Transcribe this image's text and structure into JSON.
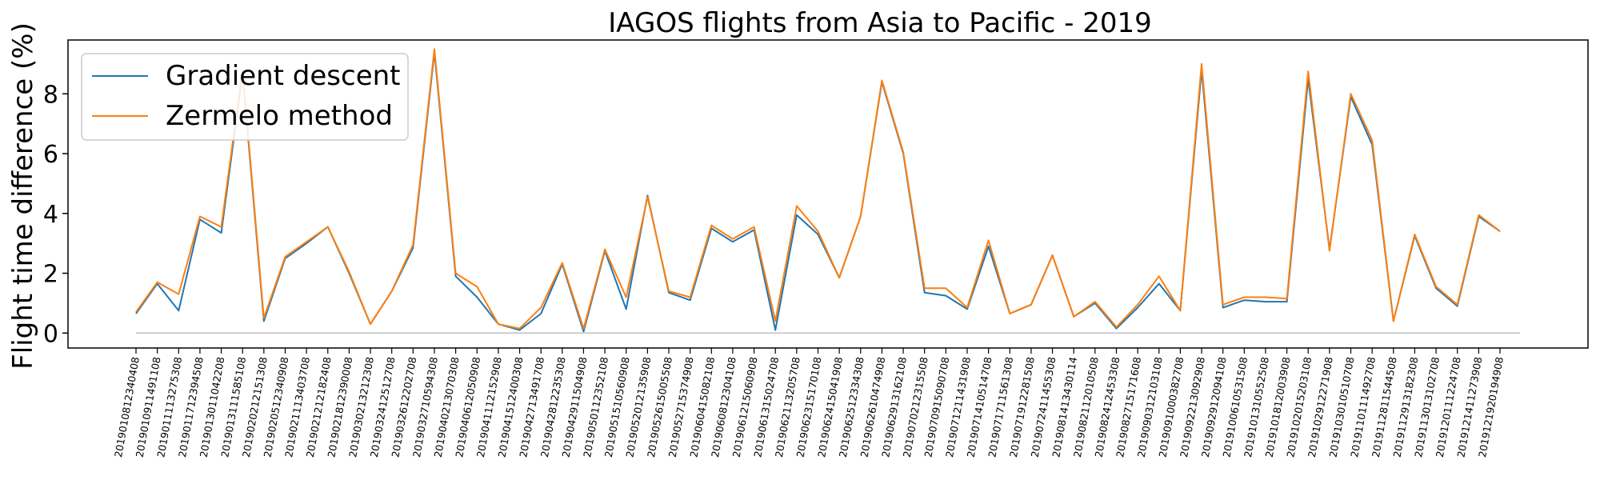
{
  "chart_data": {
    "type": "line",
    "title": "IAGOS flights from Asia to Pacific - 2019",
    "xlabel": "",
    "ylabel": "Flight time difference (%)",
    "ylim": [
      -0.5,
      9.8
    ],
    "yticks": [
      "0",
      "2",
      "4",
      "6",
      "8"
    ],
    "grid": false,
    "legend": "top-left",
    "colors": {
      "gradient": "#1f77b4",
      "zermelo": "#ff7f0e",
      "baseline": "#c0c0c0"
    },
    "categories": [
      "2019010812340408",
      "2019010911491108",
      "2019011113275308",
      "2019011712394508",
      "2019013011042208",
      "2019013111585108",
      "2019020212151308",
      "2019020512340908",
      "2019021113403708",
      "2019021212182408",
      "2019021812390008",
      "2019030213212308",
      "2019032412512708",
      "2019032612202708",
      "2019032710594308",
      "2019040213070308",
      "2019040612050908",
      "2019041112152908",
      "2019041512400308",
      "2019042713491708",
      "2019042812235308",
      "2019042911504908",
      "2019050112352108",
      "2019051510560908",
      "2019052012135908",
      "2019052615005508",
      "2019052715374908",
      "2019060415082108",
      "2019060812304108",
      "2019061215060908",
      "2019061315024708",
      "2019062113205708",
      "2019062315170108",
      "2019062415041908",
      "2019062512334308",
      "2019062610474908",
      "2019062913162108",
      "2019070212315508",
      "2019070915090708",
      "2019071211431908",
      "2019071410514708",
      "2019071711561308",
      "2019071912281508",
      "2019072411455308",
      "2019081413430114",
      "2019082112010508",
      "2019082412453308",
      "2019082715171608",
      "2019090312103108",
      "2019091000382708",
      "2019092213092908",
      "2019092912094108",
      "2019100610531508",
      "2019101310552508",
      "2019101812003908",
      "2019102015203108",
      "2019102912271908",
      "2019103010510708",
      "2019110111492708",
      "2019112811544508",
      "2019112913182308",
      "2019113013102708",
      "2019120111224708",
      "2019121411273908",
      "2019121920194908"
    ],
    "series": [
      {
        "name": "Gradient descent",
        "values": [
          0.65,
          1.65,
          0.75,
          3.8,
          3.35,
          8.7,
          0.4,
          2.5,
          3.0,
          3.55,
          2.0,
          0.3,
          1.4,
          2.85,
          9.4,
          1.9,
          1.2,
          0.3,
          0.1,
          0.65,
          2.3,
          0.05,
          2.75,
          0.8,
          4.6,
          1.35,
          1.1,
          3.5,
          3.05,
          3.45,
          0.1,
          3.95,
          3.3,
          1.85,
          3.9,
          8.4,
          6.0,
          1.35,
          1.25,
          0.8,
          2.9,
          0.65,
          0.95,
          2.6,
          0.55,
          1.0,
          0.15,
          0.85,
          1.65,
          0.75,
          8.8,
          0.85,
          1.1,
          1.05,
          1.05,
          8.5,
          2.8,
          7.9,
          6.3,
          0.4,
          3.25,
          1.5,
          0.9,
          3.9,
          3.4
        ]
      },
      {
        "name": "Zermelo method",
        "values": [
          0.7,
          1.7,
          1.3,
          3.9,
          3.55,
          8.8,
          0.5,
          2.55,
          3.05,
          3.55,
          2.05,
          0.3,
          1.4,
          2.95,
          9.5,
          2.0,
          1.55,
          0.3,
          0.15,
          0.85,
          2.35,
          0.15,
          2.8,
          1.2,
          4.55,
          1.4,
          1.2,
          3.6,
          3.15,
          3.55,
          0.4,
          4.25,
          3.4,
          1.85,
          3.9,
          8.45,
          6.05,
          1.5,
          1.5,
          0.85,
          3.1,
          0.65,
          0.95,
          2.6,
          0.55,
          1.05,
          0.2,
          0.95,
          1.9,
          0.75,
          9.0,
          0.95,
          1.2,
          1.2,
          1.15,
          8.75,
          2.75,
          8.0,
          6.45,
          0.4,
          3.3,
          1.55,
          0.95,
          3.95,
          3.4
        ]
      }
    ]
  }
}
